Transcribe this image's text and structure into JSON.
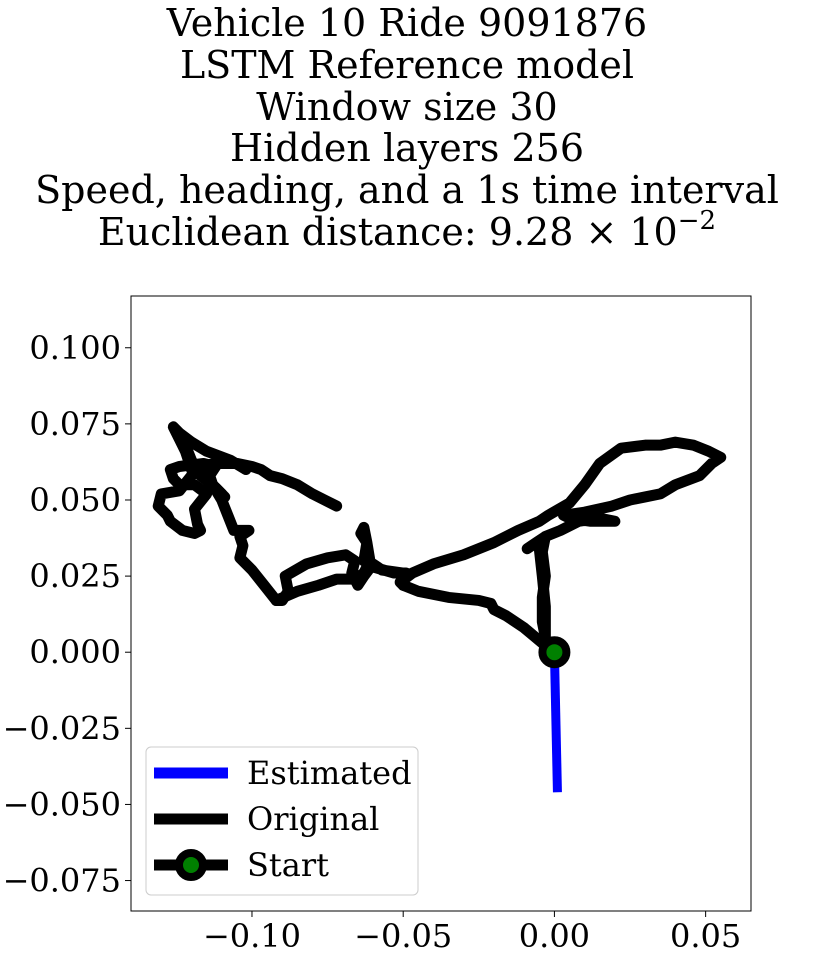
{
  "chart_data": {
    "type": "line",
    "title_lines": [
      "Vehicle 10 Ride 9091876",
      "LSTM Reference model",
      "Window size 30",
      "Hidden layers 256",
      "Speed, heading, and a 1s time interval"
    ],
    "title_distance_prefix": "Euclidean distance: 9.28 × 10",
    "title_distance_exponent": "−2",
    "xlim": [
      -0.14,
      0.065
    ],
    "ylim": [
      -0.085,
      0.117
    ],
    "xticks": [
      -0.1,
      -0.05,
      0.0,
      0.05
    ],
    "xtick_labels": [
      "−0.10",
      "−0.05",
      "0.00",
      "0.05"
    ],
    "yticks": [
      0.1,
      0.075,
      0.05,
      0.025,
      0.0,
      -0.025,
      -0.05,
      -0.075
    ],
    "ytick_labels": [
      "0.100",
      "0.075",
      "0.050",
      "0.025",
      "0.000",
      "−0.025",
      "−0.050",
      "−0.075"
    ],
    "grid": false,
    "legend_position": "lower-left",
    "series": [
      {
        "name": "Estimated",
        "color": "#0000ff",
        "points": [
          [
            0.0,
            0.0
          ],
          [
            0.001,
            -0.046
          ]
        ]
      },
      {
        "name": "Original",
        "color": "#000000",
        "points": [
          [
            0.0,
            0.0
          ],
          [
            -0.004,
            0.003
          ],
          [
            -0.01,
            0.008
          ],
          [
            -0.016,
            0.012
          ],
          [
            -0.02,
            0.014
          ],
          [
            -0.021,
            0.016
          ],
          [
            -0.025,
            0.017
          ],
          [
            -0.035,
            0.018
          ],
          [
            -0.045,
            0.02
          ],
          [
            -0.05,
            0.022
          ],
          [
            -0.051,
            0.023
          ],
          [
            -0.047,
            0.026
          ],
          [
            -0.04,
            0.029
          ],
          [
            -0.03,
            0.032
          ],
          [
            -0.02,
            0.036
          ],
          [
            -0.012,
            0.04
          ],
          [
            -0.005,
            0.043
          ],
          [
            -0.002,
            0.045
          ],
          [
            0.005,
            0.049
          ],
          [
            0.01,
            0.055
          ],
          [
            0.015,
            0.062
          ],
          [
            0.022,
            0.067
          ],
          [
            0.03,
            0.068
          ],
          [
            0.035,
            0.068
          ],
          [
            0.04,
            0.069
          ],
          [
            0.046,
            0.068
          ],
          [
            0.051,
            0.066
          ],
          [
            0.055,
            0.064
          ],
          [
            0.052,
            0.062
          ],
          [
            0.048,
            0.058
          ],
          [
            0.04,
            0.055
          ],
          [
            0.035,
            0.052
          ],
          [
            0.03,
            0.051
          ],
          [
            0.025,
            0.05
          ],
          [
            0.019,
            0.048
          ],
          [
            0.01,
            0.046
          ],
          [
            0.003,
            0.045
          ],
          [
            0.005,
            0.044
          ],
          [
            0.012,
            0.043
          ],
          [
            0.02,
            0.043
          ],
          [
            0.015,
            0.044
          ],
          [
            0.008,
            0.043
          ],
          [
            0.002,
            0.04
          ],
          [
            -0.003,
            0.038
          ],
          [
            -0.004,
            0.033
          ],
          [
            -0.003,
            0.025
          ],
          [
            -0.004,
            0.018
          ],
          [
            -0.004,
            0.01
          ],
          [
            -0.003,
            0.005
          ],
          [
            -0.003,
            0.015
          ],
          [
            -0.004,
            0.025
          ],
          [
            -0.005,
            0.034
          ],
          [
            -0.003,
            0.038
          ],
          [
            -0.006,
            0.036
          ],
          [
            -0.009,
            0.034
          ]
        ],
        "segment2": [
          [
            -0.05,
            0.022
          ],
          [
            -0.049,
            0.026
          ],
          [
            -0.053,
            0.026
          ],
          [
            -0.06,
            0.028
          ],
          [
            -0.063,
            0.03
          ],
          [
            -0.062,
            0.036
          ],
          [
            -0.064,
            0.039
          ],
          [
            -0.063,
            0.041
          ],
          [
            -0.062,
            0.036
          ],
          [
            -0.061,
            0.03
          ],
          [
            -0.063,
            0.026
          ],
          [
            -0.066,
            0.024
          ],
          [
            -0.068,
            0.024
          ],
          [
            -0.072,
            0.024
          ],
          [
            -0.078,
            0.022
          ],
          [
            -0.085,
            0.02
          ],
          [
            -0.092,
            0.017
          ],
          [
            -0.09,
            0.017
          ],
          [
            -0.088,
            0.02
          ],
          [
            -0.089,
            0.025
          ],
          [
            -0.082,
            0.029
          ],
          [
            -0.075,
            0.031
          ],
          [
            -0.069,
            0.032
          ],
          [
            -0.066,
            0.03
          ],
          [
            -0.067,
            0.026
          ],
          [
            -0.065,
            0.022
          ],
          [
            -0.063,
            0.025
          ],
          [
            -0.06,
            0.029
          ],
          [
            -0.057,
            0.027
          ],
          [
            -0.05,
            0.026
          ]
        ],
        "segment3": [
          [
            -0.092,
            0.017
          ],
          [
            -0.096,
            0.022
          ],
          [
            -0.1,
            0.027
          ],
          [
            -0.104,
            0.031
          ],
          [
            -0.103,
            0.035
          ],
          [
            -0.104,
            0.038
          ],
          [
            -0.101,
            0.04
          ],
          [
            -0.106,
            0.04
          ],
          [
            -0.108,
            0.045
          ],
          [
            -0.11,
            0.05
          ],
          [
            -0.113,
            0.055
          ],
          [
            -0.114,
            0.058
          ],
          [
            -0.112,
            0.061
          ],
          [
            -0.116,
            0.062
          ],
          [
            -0.124,
            0.061
          ],
          [
            -0.127,
            0.06
          ],
          [
            -0.126,
            0.057
          ],
          [
            -0.124,
            0.055
          ],
          [
            -0.119,
            0.055
          ],
          [
            -0.115,
            0.052
          ],
          [
            -0.119,
            0.047
          ],
          [
            -0.118,
            0.042
          ],
          [
            -0.117,
            0.04
          ],
          [
            -0.119,
            0.039
          ],
          [
            -0.123,
            0.04
          ],
          [
            -0.127,
            0.043
          ],
          [
            -0.128,
            0.045
          ],
          [
            -0.131,
            0.048
          ],
          [
            -0.13,
            0.052
          ],
          [
            -0.124,
            0.053
          ],
          [
            -0.12,
            0.058
          ],
          [
            -0.117,
            0.061
          ],
          [
            -0.112,
            0.062
          ],
          [
            -0.105,
            0.062
          ],
          [
            -0.1,
            0.061
          ],
          [
            -0.097,
            0.06
          ],
          [
            -0.094,
            0.058
          ],
          [
            -0.09,
            0.057
          ],
          [
            -0.085,
            0.055
          ],
          [
            -0.08,
            0.052
          ],
          [
            -0.076,
            0.05
          ],
          [
            -0.072,
            0.048
          ]
        ],
        "segment4": [
          [
            -0.12,
            0.06
          ],
          [
            -0.121,
            0.063
          ],
          [
            -0.122,
            0.066
          ],
          [
            -0.124,
            0.07
          ],
          [
            -0.126,
            0.074
          ],
          [
            -0.124,
            0.072
          ],
          [
            -0.12,
            0.069
          ],
          [
            -0.115,
            0.066
          ],
          [
            -0.107,
            0.063
          ],
          [
            -0.102,
            0.06
          ]
        ],
        "segment5": [
          [
            -0.119,
            0.06
          ],
          [
            -0.116,
            0.058
          ],
          [
            -0.113,
            0.055
          ],
          [
            -0.11,
            0.052
          ]
        ],
        "segment6": [
          [
            -0.124,
            0.071
          ],
          [
            -0.122,
            0.068
          ],
          [
            -0.12,
            0.063
          ],
          [
            -0.117,
            0.058
          ],
          [
            -0.112,
            0.054
          ],
          [
            -0.109,
            0.051
          ]
        ]
      }
    ],
    "legend": [
      {
        "label": "Estimated",
        "color": "#0000ff",
        "marker": "none"
      },
      {
        "label": "Original",
        "color": "#000000",
        "marker": "none"
      },
      {
        "label": "Start",
        "color": "#000000",
        "marker": "circle",
        "marker_face": "#008000"
      }
    ],
    "start_point": {
      "x": 0.0,
      "y": 0.0,
      "face_color": "#008000",
      "edge_color": "#000000"
    }
  }
}
